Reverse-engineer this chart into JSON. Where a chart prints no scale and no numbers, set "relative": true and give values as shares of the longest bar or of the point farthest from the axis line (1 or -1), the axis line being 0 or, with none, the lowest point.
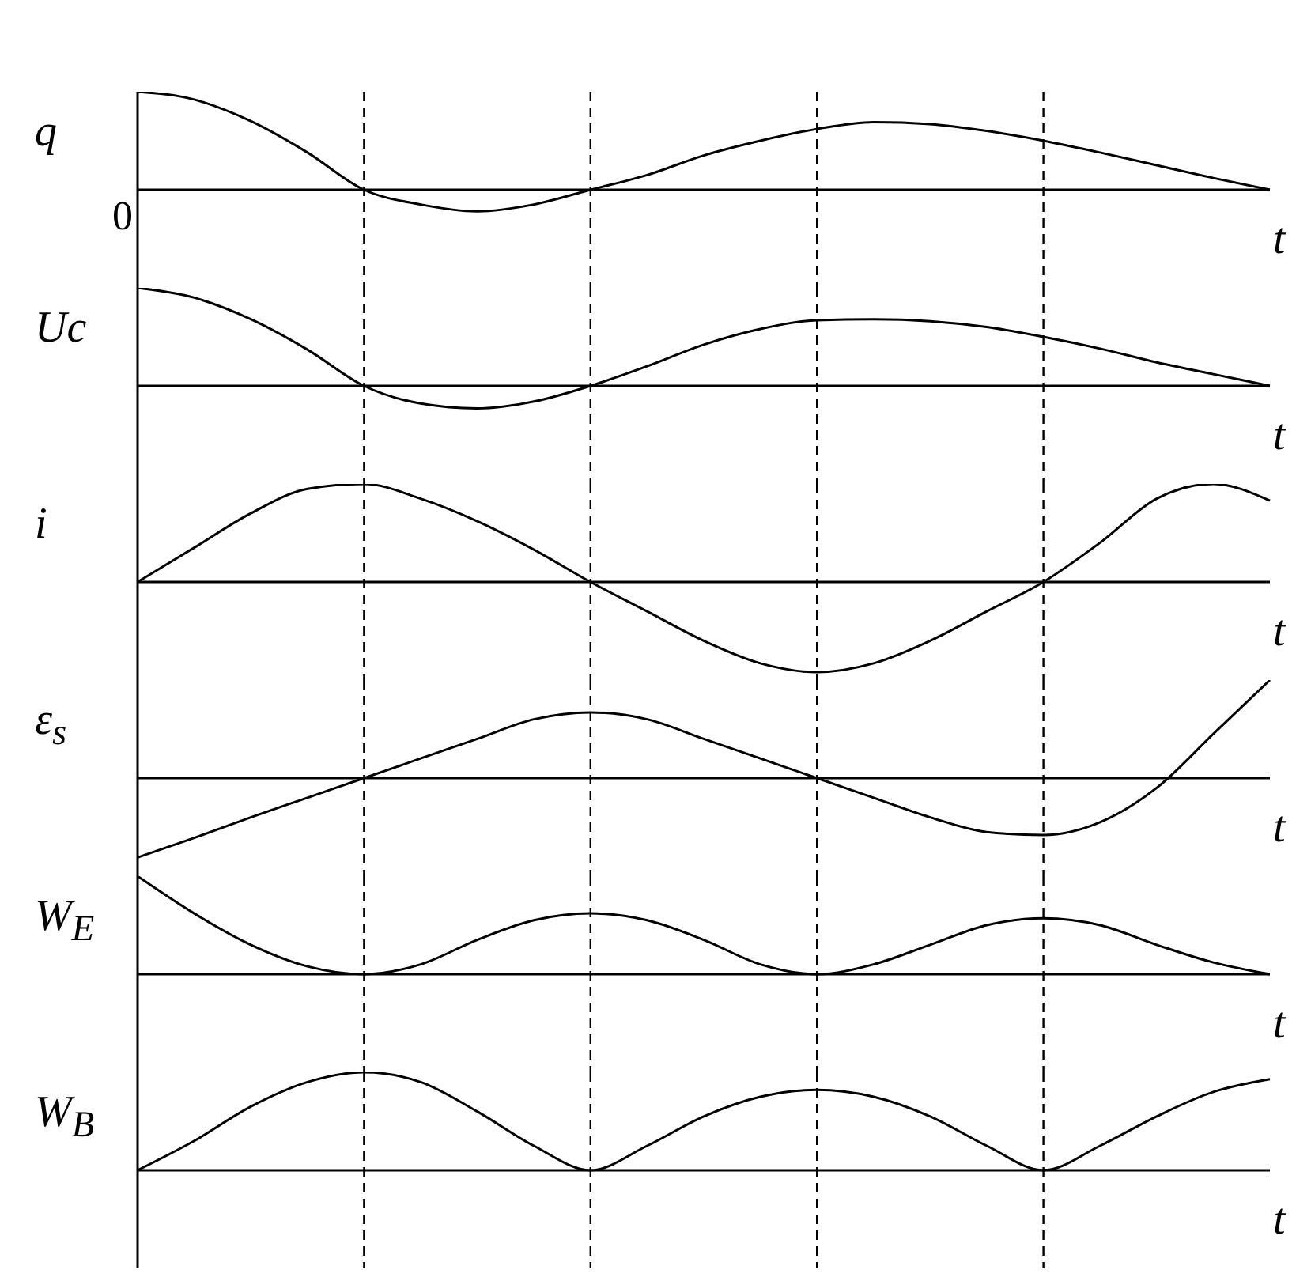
{
  "chart_data": [
    {
      "type": "line",
      "relative": true,
      "grid": "x",
      "ylabel": "q",
      "xlabel": "t",
      "annotations": [
        "0"
      ],
      "categories": [
        null,
        null,
        null,
        null,
        null,
        null,
        null,
        null,
        null,
        null,
        null,
        null,
        null,
        null,
        null,
        null,
        null,
        null,
        null,
        null,
        null
      ],
      "series": [
        {
          "color": "#000000",
          "values": [
            1,
            0.92,
            0.7,
            0.38,
            0,
            -0.15,
            -0.22,
            -0.15,
            0,
            0.15,
            0.35,
            0.5,
            0.62,
            0.69,
            0.67,
            0.6,
            0.5,
            0.38,
            0.25,
            0.12,
            0
          ]
        }
      ]
    },
    {
      "type": "line",
      "relative": true,
      "grid": "x",
      "ylabel": "Uc",
      "xlabel": "t",
      "categories": [
        null,
        null,
        null,
        null,
        null,
        null,
        null,
        null,
        null,
        null,
        null,
        null,
        null,
        null,
        null,
        null,
        null,
        null,
        null,
        null,
        null
      ],
      "series": [
        {
          "color": "#000000",
          "values": [
            1,
            0.9,
            0.68,
            0.37,
            0,
            -0.18,
            -0.23,
            -0.16,
            0,
            0.2,
            0.42,
            0.58,
            0.67,
            0.68,
            0.66,
            0.6,
            0.5,
            0.38,
            0.24,
            0.12,
            0
          ]
        }
      ]
    },
    {
      "type": "line",
      "relative": true,
      "grid": "x",
      "ylabel": "i",
      "xlabel": "t",
      "categories": [
        null,
        null,
        null,
        null,
        null,
        null,
        null,
        null,
        null,
        null,
        null,
        null,
        null,
        null,
        null,
        null,
        null,
        null,
        null,
        null,
        null
      ],
      "series": [
        {
          "color": "#000000",
          "values": [
            0,
            0.35,
            0.7,
            0.95,
            1,
            0.85,
            0.62,
            0.33,
            0,
            -0.3,
            -0.6,
            -0.83,
            -0.92,
            -0.83,
            -0.6,
            -0.3,
            0,
            0.4,
            0.85,
            1,
            0.83
          ]
        }
      ]
    },
    {
      "type": "line",
      "relative": true,
      "grid": "x",
      "ylabel": "ε$_{s}$",
      "xlabel": "t",
      "categories": [
        null,
        null,
        null,
        null,
        null,
        null,
        null,
        null,
        null,
        null,
        null,
        null,
        null,
        null,
        null,
        null,
        null,
        null,
        null,
        null,
        null
      ],
      "series": [
        {
          "color": "#000000",
          "values": [
            -0.81,
            -0.61,
            -0.4,
            -0.2,
            0,
            0.2,
            0.4,
            0.6,
            0.67,
            0.6,
            0.4,
            0.2,
            0,
            -0.2,
            -0.4,
            -0.55,
            -0.58,
            -0.45,
            -0.1,
            0.45,
            1
          ]
        }
      ]
    },
    {
      "type": "line",
      "relative": true,
      "grid": "x",
      "ylabel": "W$_{E}$",
      "xlabel": "t",
      "categories": [
        null,
        null,
        null,
        null,
        null,
        null,
        null,
        null,
        null,
        null,
        null,
        null,
        null,
        null,
        null,
        null,
        null,
        null,
        null,
        null,
        null
      ],
      "series": [
        {
          "color": "#000000",
          "values": [
            1,
            0.62,
            0.3,
            0.08,
            0,
            0.1,
            0.35,
            0.55,
            0.62,
            0.55,
            0.35,
            0.1,
            0,
            0.1,
            0.3,
            0.5,
            0.57,
            0.5,
            0.3,
            0.12,
            0
          ]
        }
      ]
    },
    {
      "type": "line",
      "relative": true,
      "grid": "x",
      "ylabel": "W$_{B}$",
      "xlabel": "t",
      "categories": [
        null,
        null,
        null,
        null,
        null,
        null,
        null,
        null,
        null,
        null,
        null,
        null,
        null,
        null,
        null,
        null,
        null,
        null,
        null,
        null,
        null
      ],
      "series": [
        {
          "color": "#000000",
          "values": [
            0,
            0.3,
            0.65,
            0.9,
            1,
            0.9,
            0.6,
            0.25,
            0,
            0.25,
            0.55,
            0.75,
            0.82,
            0.75,
            0.55,
            0.25,
            0,
            0.25,
            0.55,
            0.8,
            0.93
          ]
        }
      ]
    }
  ]
}
